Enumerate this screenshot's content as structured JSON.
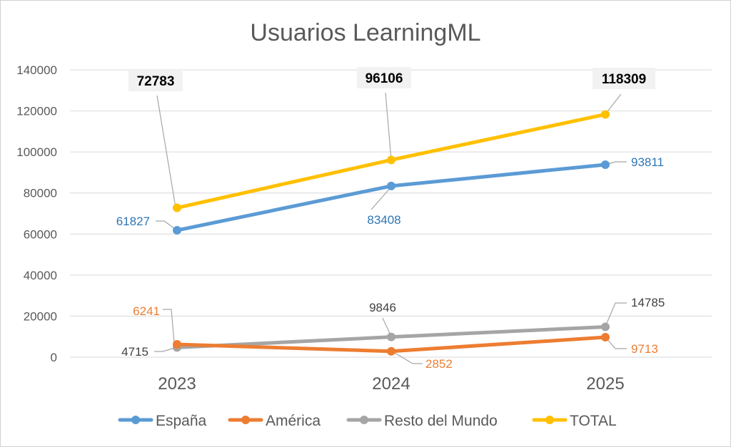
{
  "chart_data": {
    "type": "line",
    "title": "Usuarios LearningML",
    "categories": [
      "2023",
      "2024",
      "2025"
    ],
    "ylim": [
      0,
      140000
    ],
    "yticks": [
      "0",
      "20000",
      "40000",
      "60000",
      "80000",
      "100000",
      "120000",
      "140000"
    ],
    "grid": true,
    "legend_position": "bottom",
    "series": [
      {
        "name": "España",
        "color": "#5b9bd5",
        "values": [
          61827,
          83408,
          93811
        ],
        "labels": [
          "61827",
          "83408",
          "93811"
        ]
      },
      {
        "name": "América",
        "color": "#ed7d31",
        "values": [
          6241,
          2852,
          9713
        ],
        "labels": [
          "6241",
          "2852",
          "9713"
        ]
      },
      {
        "name": "Resto del Mundo",
        "color": "#a5a5a5",
        "values": [
          4715,
          9846,
          14785
        ],
        "labels": [
          "4715",
          "9846",
          "14785"
        ]
      },
      {
        "name": "TOTAL",
        "color": "#ffc000",
        "values": [
          72783,
          96106,
          118309
        ],
        "labels": [
          "72783",
          "96106",
          "118309"
        ]
      }
    ]
  }
}
